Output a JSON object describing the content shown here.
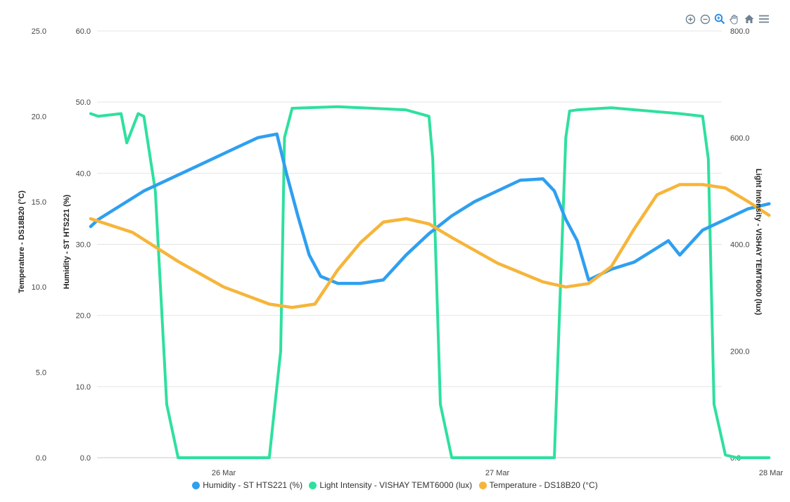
{
  "chart_data": {
    "type": "line",
    "title": "",
    "x_ticks": [
      "26 Mar",
      "27 Mar",
      "28 Mar"
    ],
    "x_range": [
      "25 Mar 12:20",
      "27 Mar 23:50"
    ],
    "axes": {
      "temperature": {
        "label": "Temperature - DS18B20 (°C)",
        "range": [
          0,
          25
        ],
        "ticks": [
          "0.0",
          "5.0",
          "10.0",
          "15.0",
          "20.0",
          "25.0"
        ]
      },
      "humidity": {
        "label": "Humidity - ST HTS221 (%)",
        "range": [
          0,
          60
        ],
        "ticks": [
          "0.0",
          "10.0",
          "20.0",
          "30.0",
          "40.0",
          "50.0",
          "60.0"
        ]
      },
      "light": {
        "label": "Light Intensity - VISHAY TEMT6000 (lux)",
        "range": [
          0,
          800
        ],
        "ticks": [
          "0.0",
          "200.0",
          "400.0",
          "600.0",
          "800.0"
        ]
      }
    },
    "series": [
      {
        "name": "Humidity - ST HTS221 (%)",
        "axis": "humidity",
        "color": "#2f9ff0",
        "x": [
          "25 Mar 12:20",
          "25 Mar 13:00",
          "25 Mar 15:00",
          "25 Mar 17:00",
          "25 Mar 19:00",
          "25 Mar 21:00",
          "25 Mar 23:00",
          "26 Mar 01:00",
          "26 Mar 03:00",
          "26 Mar 04:40",
          "26 Mar 05:30",
          "26 Mar 06:30",
          "26 Mar 07:30",
          "26 Mar 08:30",
          "26 Mar 10:00",
          "26 Mar 12:00",
          "26 Mar 14:00",
          "26 Mar 16:00",
          "26 Mar 18:00",
          "26 Mar 20:00",
          "26 Mar 22:00",
          "27 Mar 00:00",
          "27 Mar 02:00",
          "27 Mar 04:00",
          "27 Mar 05:00",
          "27 Mar 06:00",
          "27 Mar 07:00",
          "27 Mar 08:00",
          "27 Mar 10:00",
          "27 Mar 12:00",
          "27 Mar 14:00",
          "27 Mar 15:00",
          "27 Mar 16:00",
          "27 Mar 18:00",
          "27 Mar 20:00",
          "27 Mar 22:00",
          "27 Mar 23:50"
        ],
        "y": [
          32.5,
          33.5,
          35.5,
          37.5,
          39.0,
          40.5,
          42.0,
          43.5,
          45.0,
          45.5,
          40.0,
          34.0,
          28.5,
          25.5,
          24.5,
          24.5,
          25.0,
          28.5,
          31.5,
          34.0,
          36.0,
          37.5,
          39.0,
          39.2,
          37.5,
          33.5,
          30.5,
          25.0,
          26.5,
          27.5,
          29.5,
          30.5,
          28.5,
          32.0,
          33.5,
          35.0,
          35.7
        ]
      },
      {
        "name": "Light Intensity - VISHAY TEMT6000 (lux)",
        "axis": "light",
        "color": "#2ee09e",
        "x": [
          "25 Mar 12:20",
          "25 Mar 13:00",
          "25 Mar 15:00",
          "25 Mar 15:30",
          "25 Mar 16:30",
          "25 Mar 17:00",
          "25 Mar 18:00",
          "25 Mar 19:00",
          "25 Mar 20:00",
          "26 Mar 04:00",
          "26 Mar 05:00",
          "26 Mar 05:20",
          "26 Mar 06:00",
          "26 Mar 10:00",
          "26 Mar 16:00",
          "26 Mar 18:00",
          "26 Mar 18:20",
          "26 Mar 19:00",
          "26 Mar 20:00",
          "26 Mar 21:00",
          "27 Mar 05:00",
          "27 Mar 06:00",
          "27 Mar 06:20",
          "27 Mar 07:00",
          "27 Mar 10:00",
          "27 Mar 16:00",
          "27 Mar 18:00",
          "27 Mar 18:30",
          "27 Mar 19:00",
          "27 Mar 20:00",
          "27 Mar 21:00",
          "27 Mar 23:50"
        ],
        "y": [
          645,
          640,
          645,
          590,
          645,
          640,
          500,
          100,
          0,
          0,
          200,
          600,
          655,
          658,
          652,
          640,
          560,
          100,
          0,
          0,
          0,
          600,
          650,
          652,
          656,
          645,
          640,
          560,
          100,
          5,
          0,
          0
        ]
      },
      {
        "name": "Temperature - DS18B20 (°C)",
        "axis": "temperature",
        "color": "#f6b53a",
        "x": [
          "25 Mar 12:20",
          "25 Mar 16:00",
          "25 Mar 20:00",
          "26 Mar 00:00",
          "26 Mar 04:00",
          "26 Mar 06:00",
          "26 Mar 08:00",
          "26 Mar 10:00",
          "26 Mar 12:00",
          "26 Mar 14:00",
          "26 Mar 16:00",
          "26 Mar 18:00",
          "26 Mar 20:00",
          "27 Mar 00:00",
          "27 Mar 04:00",
          "27 Mar 06:00",
          "27 Mar 08:00",
          "27 Mar 10:00",
          "27 Mar 12:00",
          "27 Mar 14:00",
          "27 Mar 16:00",
          "27 Mar 18:00",
          "27 Mar 20:00",
          "27 Mar 22:00",
          "27 Mar 23:50"
        ],
        "y": [
          14.0,
          13.2,
          11.5,
          10.0,
          9.0,
          8.8,
          9.0,
          11.0,
          12.6,
          13.8,
          14.0,
          13.7,
          12.9,
          11.4,
          10.3,
          10.0,
          10.2,
          11.2,
          13.4,
          15.4,
          16.0,
          16.0,
          15.8,
          15.0,
          14.2
        ]
      }
    ],
    "grid": true,
    "legend": "bottom-center"
  },
  "legend": {
    "items": [
      {
        "label": "Humidity - ST HTS221 (%)",
        "color": "#2f9ff0"
      },
      {
        "label": "Light Intensity - VISHAY TEMT6000 (lux)",
        "color": "#2ee09e"
      },
      {
        "label": "Temperature - DS18B20 (°C)",
        "color": "#f6b53a"
      }
    ]
  },
  "toolbar": {
    "icons": [
      "zoom-in-icon",
      "zoom-out-icon",
      "selection-zoom-icon",
      "pan-icon",
      "home-icon",
      "menu-icon"
    ]
  }
}
